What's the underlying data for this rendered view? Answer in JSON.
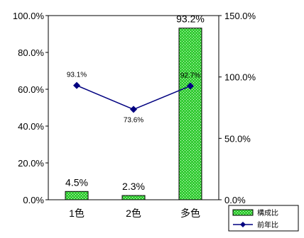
{
  "chart_data": {
    "type": "bar",
    "categories": [
      "1色",
      "2色",
      "多色"
    ],
    "series": [
      {
        "name": "構成比",
        "type": "bar",
        "axis": "left",
        "values": [
          4.5,
          2.3,
          93.2
        ],
        "labels": [
          "4.5%",
          "2.3%",
          "93.2%"
        ],
        "color": "#33cc33",
        "pattern": "dotted-green"
      },
      {
        "name": "前年比",
        "type": "line",
        "axis": "right",
        "values": [
          93.1,
          73.6,
          92.7
        ],
        "labels": [
          "93.1%",
          "73.6%",
          "92.7%"
        ],
        "color": "#000080",
        "marker": "diamond"
      }
    ],
    "y_left": {
      "range": [
        0,
        100
      ],
      "ticks": [
        0,
        20,
        40,
        60,
        80,
        100
      ],
      "tick_labels": [
        "0.0%",
        "20.0%",
        "40.0%",
        "60.0%",
        "80.0%",
        "100.0%"
      ]
    },
    "y_right": {
      "range": [
        0,
        150
      ],
      "ticks": [
        0,
        50,
        100,
        150
      ],
      "tick_labels": [
        "0.0%",
        "50.0%",
        "100.0%",
        "150.0%"
      ]
    },
    "title": "",
    "grid": false,
    "legend_position": "bottom-right"
  }
}
